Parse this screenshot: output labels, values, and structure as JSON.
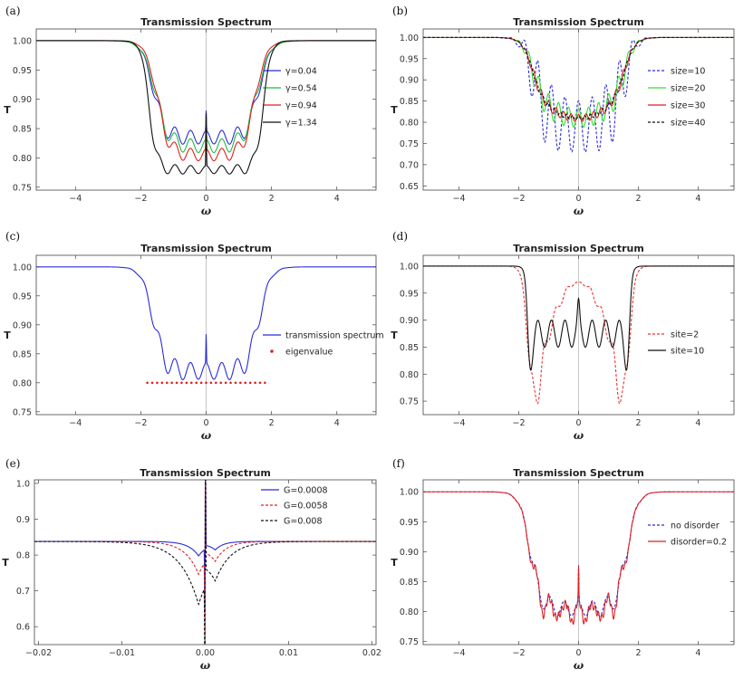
{
  "chart_data": [
    {
      "label": "(a)",
      "type": "line",
      "title": "Transmission Spectrum",
      "xlabel": "ω",
      "ylabel": "T",
      "xlim": [
        -5.2,
        5.2
      ],
      "ylim": [
        0.745,
        1.02
      ],
      "xticks": [
        -4,
        -2,
        0,
        2,
        4
      ],
      "xtick_labels": [
        "−4",
        "−2",
        "0",
        "2",
        "4"
      ],
      "yticks": [
        0.75,
        0.8,
        0.85,
        0.9,
        0.95,
        1.0
      ],
      "ytick_labels": [
        "0.75",
        "0.80",
        "0.85",
        "0.90",
        "0.95",
        "1.00"
      ],
      "legend_position": "right",
      "series": [
        {
          "name": "γ=0.04",
          "color": "#2b2bd9",
          "dash": "solid",
          "kind": "plateau",
          "base": 0.835,
          "amp": 0.02,
          "width": 1.62,
          "edge": 0.18,
          "freq": 4.2,
          "bowl": 0.0,
          "spike": 0.035
        },
        {
          "name": "γ=0.54",
          "color": "#22bb44",
          "dash": "solid",
          "kind": "plateau",
          "base": 0.82,
          "amp": 0.02,
          "width": 1.55,
          "edge": 0.2,
          "freq": 4.2,
          "bowl": 0.0,
          "spike": 0.04
        },
        {
          "name": "γ=0.94",
          "color": "#dd2222",
          "dash": "solid",
          "kind": "plateau",
          "base": 0.805,
          "amp": 0.018,
          "width": 1.5,
          "edge": 0.18,
          "freq": 4.2,
          "bowl": 0.0,
          "spike": 0.05
        },
        {
          "name": "γ=1.34",
          "color": "#111111",
          "dash": "solid",
          "kind": "plateau",
          "base": 0.78,
          "amp": 0.012,
          "width": 1.75,
          "edge": 0.12,
          "freq": 4.2,
          "bowl": 0.0,
          "spike": 0.09
        }
      ]
    },
    {
      "label": "(b)",
      "type": "line",
      "title": "Transmission Spectrum",
      "xlabel": "ω",
      "ylabel": "T",
      "xlim": [
        -5.2,
        5.2
      ],
      "ylim": [
        0.64,
        1.02
      ],
      "xticks": [
        -4,
        -2,
        0,
        2,
        4
      ],
      "xtick_labels": [
        "−4",
        "−2",
        "0",
        "2",
        "4"
      ],
      "yticks": [
        0.65,
        0.7,
        0.75,
        0.8,
        0.85,
        0.9,
        0.95,
        1.0
      ],
      "ytick_labels": [
        "0.65",
        "0.70",
        "0.75",
        "0.80",
        "0.85",
        "0.90",
        "0.95",
        "1.00"
      ],
      "legend_position": "right",
      "series": [
        {
          "name": "size=10",
          "color": "#2b2bd9",
          "dash": "3,2",
          "kind": "plateau",
          "base": 0.79,
          "amp": 0.11,
          "width": 1.6,
          "edge": 0.18,
          "freq": 4.4,
          "bowl": 0.06,
          "spike": 0.0
        },
        {
          "name": "size=20",
          "color": "#33dd33",
          "dash": "solid",
          "kind": "plateau",
          "base": 0.81,
          "amp": 0.04,
          "width": 1.6,
          "edge": 0.18,
          "freq": 6.0,
          "bowl": 0.06,
          "spike": 0.0
        },
        {
          "name": "size=30",
          "color": "#dd2222",
          "dash": "solid",
          "kind": "plateau",
          "base": 0.81,
          "amp": 0.015,
          "width": 1.6,
          "edge": 0.18,
          "freq": 8.0,
          "bowl": 0.06,
          "spike": 0.0
        },
        {
          "name": "size=40",
          "color": "#111111",
          "dash": "3,2",
          "kind": "plateau",
          "base": 0.81,
          "amp": 0.008,
          "width": 1.6,
          "edge": 0.18,
          "freq": 10.0,
          "bowl": 0.06,
          "spike": 0.0
        }
      ]
    },
    {
      "label": "(c)",
      "type": "line",
      "title": "Transmission Spectrum",
      "xlabel": "ω",
      "ylabel": "T",
      "xlim": [
        -5.2,
        5.2
      ],
      "ylim": [
        0.745,
        1.02
      ],
      "xticks": [
        -4,
        -2,
        0,
        2,
        4
      ],
      "xtick_labels": [
        "−4",
        "−2",
        "0",
        "2",
        "4"
      ],
      "yticks": [
        0.75,
        0.8,
        0.85,
        0.9,
        0.95,
        1.0
      ],
      "ytick_labels": [
        "0.75",
        "0.80",
        "0.85",
        "0.90",
        "0.95",
        "1.00"
      ],
      "legend_position": "right",
      "series": [
        {
          "name": "transmission spectrum",
          "color": "#2b2bd9",
          "dash": "solid",
          "kind": "plateau",
          "base": 0.82,
          "amp": 0.025,
          "width": 1.62,
          "edge": 0.18,
          "freq": 4.2,
          "bowl": 0.0,
          "spike": 0.05
        }
      ],
      "points": {
        "name": "eigenvalue",
        "color": "#dd2222",
        "x": [
          -1.8,
          -1.65,
          -1.5,
          -1.35,
          -1.2,
          -1.05,
          -0.9,
          -0.75,
          -0.6,
          -0.45,
          -0.3,
          -0.15,
          0.0,
          0.15,
          0.3,
          0.45,
          0.6,
          0.75,
          0.9,
          1.05,
          1.2,
          1.35,
          1.5,
          1.65,
          1.8
        ],
        "y": 0.8
      }
    },
    {
      "label": "(d)",
      "type": "line",
      "title": "Transmission Spectrum",
      "xlabel": "ω",
      "ylabel": "T",
      "xlim": [
        -5.2,
        5.2
      ],
      "ylim": [
        0.725,
        1.02
      ],
      "xticks": [
        -4,
        -2,
        0,
        2,
        4
      ],
      "xtick_labels": [
        "−4",
        "−2",
        "0",
        "2",
        "4"
      ],
      "yticks": [
        0.75,
        0.8,
        0.85,
        0.9,
        0.95,
        1.0
      ],
      "ytick_labels": [
        "0.75",
        "0.80",
        "0.85",
        "0.90",
        "0.95",
        "1.00"
      ],
      "legend_position": "right",
      "series": [
        {
          "name": "site=2",
          "color": "#ee3333",
          "dash": "3,2",
          "kind": "site2"
        },
        {
          "name": "site=10",
          "color": "#111111",
          "dash": "solid",
          "kind": "site10"
        }
      ]
    },
    {
      "label": "(e)",
      "type": "line",
      "title": "Transmission Spectrum",
      "xlabel": "ω",
      "ylabel": "T",
      "xlim": [
        -0.0205,
        0.0205
      ],
      "ylim": [
        0.55,
        1.01
      ],
      "xticks": [
        -0.02,
        -0.01,
        0,
        0.01,
        0.02
      ],
      "xtick_labels": [
        "−0.02",
        "−0.01",
        "0.00",
        "0.01",
        "0.02"
      ],
      "yticks": [
        0.6,
        0.7,
        0.8,
        0.9,
        1.0
      ],
      "ytick_labels": [
        "0.6",
        "0.7",
        "0.8",
        "0.9",
        "1.0"
      ],
      "legend_position": "top-right",
      "series": [
        {
          "name": "G=0.0008",
          "color": "#2b2bd9",
          "dash": "solid",
          "kind": "fano",
          "g": 0.0008,
          "dip": 0.04,
          "w": 0.0012,
          "up": 0.0
        },
        {
          "name": "G=0.0058",
          "color": "#dd2222",
          "dash": "3,2",
          "kind": "fano",
          "g": 0.0058,
          "dip": 0.09,
          "w": 0.0016,
          "up": 0.14
        },
        {
          "name": "G=0.008",
          "color": "#111111",
          "dash": "3,2",
          "kind": "fano",
          "g": 0.008,
          "dip": 0.17,
          "w": 0.0022,
          "up": 0.15
        }
      ]
    },
    {
      "label": "(f)",
      "type": "line",
      "title": "Transmission Spectrum",
      "xlabel": "ω",
      "ylabel": "T",
      "xlim": [
        -5.2,
        5.2
      ],
      "ylim": [
        0.745,
        1.02
      ],
      "xticks": [
        -4,
        -2,
        0,
        2,
        4
      ],
      "xtick_labels": [
        "−4",
        "−2",
        "0",
        "2",
        "4"
      ],
      "yticks": [
        0.75,
        0.8,
        0.85,
        0.9,
        0.95,
        1.0
      ],
      "ytick_labels": [
        "0.75",
        "0.80",
        "0.85",
        "0.90",
        "0.95",
        "1.00"
      ],
      "legend_position": "right",
      "series": [
        {
          "name": "no disorder",
          "color": "#2b2bd9",
          "dash": "3,2",
          "kind": "plateau",
          "base": 0.805,
          "amp": 0.022,
          "width": 1.62,
          "edge": 0.18,
          "freq": 4.2,
          "bowl": 0.0,
          "spike": 0.06
        },
        {
          "name": "disorder=0.2",
          "color": "#dd2222",
          "dash": "solid",
          "kind": "plateau",
          "base": 0.8,
          "amp": 0.025,
          "width": 1.62,
          "edge": 0.18,
          "freq": 4.2,
          "bowl": 0.0,
          "spike": 0.05,
          "noise": 0.012
        }
      ]
    }
  ]
}
